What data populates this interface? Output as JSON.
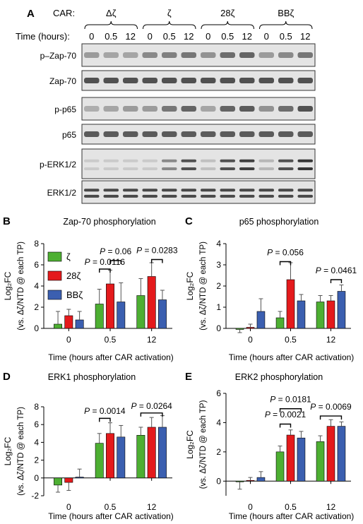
{
  "blot": {
    "panel_letter": "A",
    "car_label": "CAR:",
    "groups": [
      "Δζ",
      "ζ",
      "28ζ",
      "BBζ"
    ],
    "time_label": "Time (hours):",
    "timepoints": [
      "0",
      "0.5",
      "12"
    ],
    "rows": [
      "p–Zap-70",
      "Zap-70",
      "p-p65",
      "p65",
      "p-ERK1/2",
      "ERK1/2"
    ],
    "row_intensity": [
      [
        0.35,
        0.3,
        0.3,
        0.45,
        0.5,
        0.55,
        0.4,
        0.6,
        0.65,
        0.35,
        0.45,
        0.55
      ],
      [
        0.75,
        0.75,
        0.75,
        0.75,
        0.75,
        0.75,
        0.75,
        0.75,
        0.75,
        0.75,
        0.75,
        0.75
      ],
      [
        0.25,
        0.3,
        0.35,
        0.35,
        0.55,
        0.65,
        0.3,
        0.65,
        0.7,
        0.4,
        0.6,
        0.75
      ],
      [
        0.7,
        0.7,
        0.7,
        0.7,
        0.7,
        0.7,
        0.7,
        0.7,
        0.7,
        0.7,
        0.7,
        0.7
      ],
      [
        0.1,
        0.1,
        0.1,
        0.1,
        0.45,
        0.75,
        0.15,
        0.75,
        0.85,
        0.2,
        0.75,
        0.9
      ],
      [
        0.8,
        0.8,
        0.8,
        0.8,
        0.8,
        0.8,
        0.8,
        0.8,
        0.8,
        0.8,
        0.8,
        0.8
      ]
    ],
    "row_double_band": [
      false,
      false,
      false,
      false,
      true,
      true
    ]
  },
  "legend": {
    "items": [
      {
        "name": "ζ",
        "color": "#4daf32"
      },
      {
        "name": "28ζ",
        "color": "#e41a1c"
      },
      {
        "name": "BBζ",
        "color": "#3b5fb0"
      }
    ]
  },
  "chart_data": [
    {
      "panel": "B",
      "type": "bar",
      "title": "Zap-70 phosphorylation",
      "ylabel_line1": "Log₂FC",
      "ylabel_line2": "(vs. Δζ/NTD @ each TP)",
      "xlabel": "Time (hours after CAR activation)",
      "categories": [
        "0",
        "0.5",
        "12"
      ],
      "ylim": [
        0,
        8
      ],
      "yticks": [
        0,
        2,
        4,
        6,
        8
      ],
      "series": [
        {
          "name": "ζ",
          "color": "#4daf32",
          "values": [
            0.4,
            2.3,
            3.1
          ],
          "errors": [
            1.2,
            1.4,
            1.6
          ]
        },
        {
          "name": "28ζ",
          "color": "#e41a1c",
          "values": [
            1.2,
            4.2,
            4.9
          ],
          "errors": [
            0.6,
            1.3,
            1.3
          ]
        },
        {
          "name": "BBζ",
          "color": "#3b5fb0",
          "values": [
            0.8,
            2.5,
            2.7
          ],
          "errors": [
            0.8,
            1.8,
            0.9
          ]
        }
      ],
      "annotations": [
        {
          "text": "P = 0.0116",
          "cat": 1,
          "from": 0,
          "to": 1,
          "y": 5.6,
          "label_y": 6.0
        },
        {
          "text": "P = 0.06",
          "cat": 1,
          "from": 1,
          "to": 2,
          "y": 6.4,
          "label_y": 7.0
        },
        {
          "text": "P = 0.0283",
          "cat": 2,
          "from": 1,
          "to": 2,
          "y": 6.5,
          "label_y": 7.1
        }
      ]
    },
    {
      "panel": "C",
      "type": "bar",
      "title": "p65 phosphorylation",
      "ylabel_line1": "Log₂FC",
      "ylabel_line2": "(vs. Δζ/NTD @ each TP)",
      "xlabel": "Time (hours after CAR activation)",
      "categories": [
        "0",
        "0.5",
        "12"
      ],
      "ylim": [
        0,
        4
      ],
      "yticks": [
        0,
        1,
        2,
        3,
        4
      ],
      "series": [
        {
          "name": "ζ",
          "color": "#4daf32",
          "values": [
            -0.05,
            0.5,
            1.25
          ],
          "errors": [
            0.15,
            0.3,
            0.3
          ]
        },
        {
          "name": "28ζ",
          "color": "#e41a1c",
          "values": [
            0.05,
            2.3,
            1.3
          ],
          "errors": [
            0.15,
            0.8,
            0.25
          ]
        },
        {
          "name": "BBζ",
          "color": "#3b5fb0",
          "values": [
            0.8,
            1.3,
            1.75
          ],
          "errors": [
            0.6,
            0.3,
            0.3
          ]
        }
      ],
      "annotations": [
        {
          "text": "P = 0.056",
          "cat": 1,
          "from": 0,
          "to": 1,
          "y": 3.15,
          "label_y": 3.45
        },
        {
          "text": "P = 0.0461",
          "cat": 2,
          "from": 1,
          "to": 2,
          "y": 2.3,
          "label_y": 2.6
        }
      ]
    },
    {
      "panel": "D",
      "type": "bar",
      "title": "ERK1 phosphorylation",
      "ylabel_line1": "Log₂FC",
      "ylabel_line2": "(vs. Δζ/NTD @ each TP)",
      "xlabel": "Time (hours after CAR activation)",
      "categories": [
        "0",
        "0.5",
        "12"
      ],
      "ylim": [
        -2,
        8
      ],
      "yticks": [
        -2,
        0,
        2,
        4,
        6,
        8
      ],
      "series": [
        {
          "name": "ζ",
          "color": "#4daf32",
          "values": [
            -0.8,
            3.9,
            4.8
          ],
          "errors": [
            0.8,
            1.1,
            0.9
          ]
        },
        {
          "name": "28ζ",
          "color": "#e41a1c",
          "values": [
            -0.5,
            5.0,
            5.7
          ],
          "errors": [
            0.9,
            1.2,
            1.1
          ]
        },
        {
          "name": "BBζ",
          "color": "#3b5fb0",
          "values": [
            0.1,
            4.6,
            5.7
          ],
          "errors": [
            0.9,
            1.3,
            1.3
          ]
        }
      ],
      "annotations": [
        {
          "text": "P = 0.0014",
          "cat": 1,
          "from": 0,
          "to": 1,
          "y": 6.7,
          "label_y": 7.2
        },
        {
          "text": "P = 0.0264",
          "cat": 2,
          "from": 0,
          "to": 2,
          "y": 7.3,
          "label_y": 7.75
        }
      ]
    },
    {
      "panel": "E",
      "type": "bar",
      "title": "ERK2 phosphorylation",
      "ylabel_line1": "Log₂FC",
      "ylabel_line2": "(vs. Δζ/NTD @ each TP)",
      "xlabel": "Time (hours after CAR activation)",
      "categories": [
        "0",
        "0.5",
        "12"
      ],
      "ylim": [
        -1,
        6
      ],
      "yticks": [
        0,
        2,
        4,
        6
      ],
      "series": [
        {
          "name": "ζ",
          "color": "#4daf32",
          "values": [
            -0.05,
            2.0,
            2.7
          ],
          "errors": [
            0.5,
            0.4,
            0.4
          ]
        },
        {
          "name": "28ζ",
          "color": "#e41a1c",
          "values": [
            0.05,
            3.15,
            3.75
          ],
          "errors": [
            0.2,
            0.35,
            0.45
          ]
        },
        {
          "name": "BBζ",
          "color": "#3b5fb0",
          "values": [
            0.25,
            2.95,
            3.75
          ],
          "errors": [
            0.4,
            0.45,
            0.3
          ]
        }
      ],
      "annotations": [
        {
          "text": "P = 0.0021",
          "cat": 1,
          "from": 0,
          "to": 1,
          "y": 3.9,
          "label_y": 4.35
        },
        {
          "text": "P = 0.0181",
          "cat": 1,
          "from": 0,
          "to": 2,
          "y": 4.95,
          "label_y": 5.4
        },
        {
          "text": "P = 0.0069",
          "cat": 2,
          "from": 0,
          "to": 2,
          "y": 4.45,
          "label_y": 4.9
        }
      ]
    }
  ]
}
